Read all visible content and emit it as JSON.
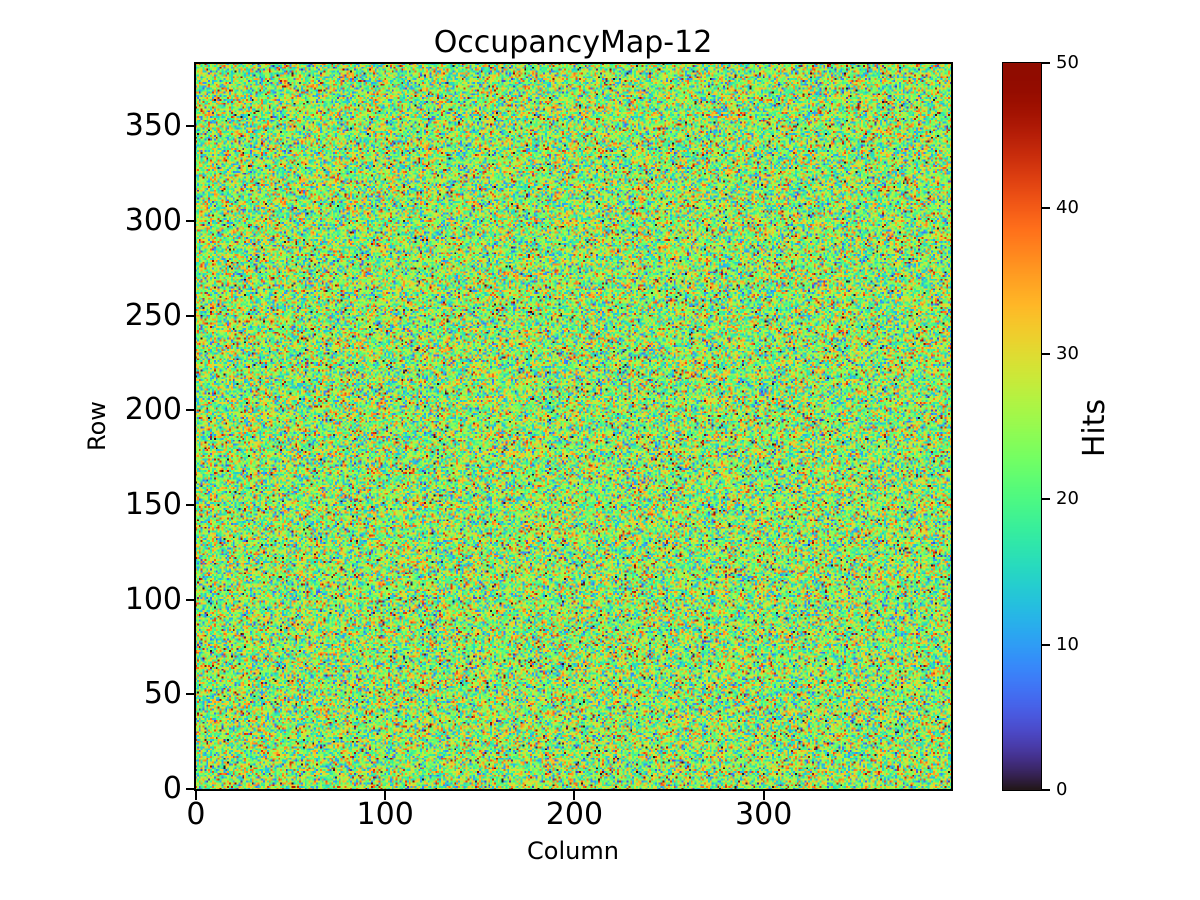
{
  "figure": {
    "background_color": "#ffffff",
    "text_color": "#000000"
  },
  "chart_data": {
    "type": "heatmap",
    "title": "OccupancyMap-12",
    "xlabel": "Column",
    "ylabel": "Row",
    "colorbar_label": "Hits",
    "colormap": "turbo",
    "grid": {
      "columns": 400,
      "rows": 384
    },
    "x_range": [
      0,
      400
    ],
    "y_range": [
      0,
      384
    ],
    "x_ticks": [
      0,
      100,
      200,
      300
    ],
    "y_ticks": [
      0,
      50,
      100,
      150,
      200,
      250,
      300,
      350
    ],
    "value_range": [
      0,
      50
    ],
    "colorbar_ticks": [
      0,
      10,
      20,
      30,
      40,
      50
    ],
    "values_summary": {
      "description": "per-pixel random hit counts, roughly bell-shaped",
      "approx_mean": 24,
      "approx_std": 9,
      "min_clip": 0,
      "max_clip": 50,
      "seed": 12
    },
    "grid_lines": false,
    "legend_position": "right-colorbar"
  }
}
